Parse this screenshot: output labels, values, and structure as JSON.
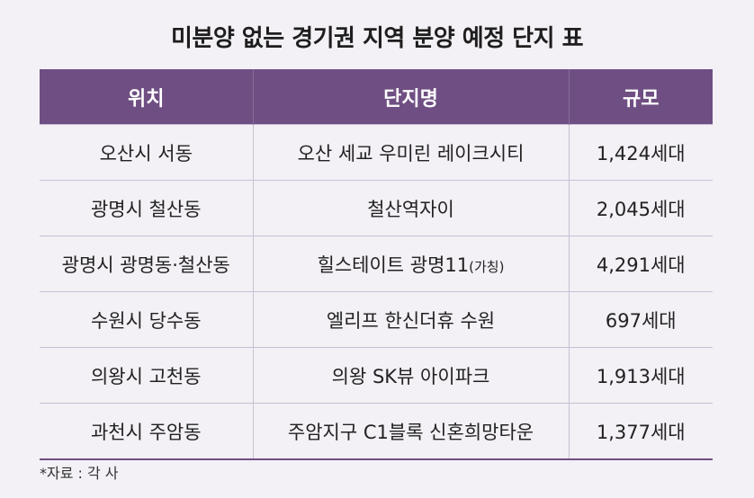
{
  "title": "미분양 없는 경기권 지역 분양 예정 단지 표",
  "table": {
    "headers": [
      "위치",
      "단지명",
      "규모"
    ],
    "rows": [
      {
        "location": "오산시 서동",
        "complex": "오산 세교 우미린 레이크시티",
        "note": "",
        "size": "1,424세대"
      },
      {
        "location": "광명시 철산동",
        "complex": "철산역자이",
        "note": "",
        "size": "2,045세대"
      },
      {
        "location": "광명시 광명동·철산동",
        "complex": "힐스테이트 광명11",
        "note": "(가칭)",
        "size": "4,291세대"
      },
      {
        "location": "수원시 당수동",
        "complex": "엘리프 한신더휴 수원",
        "note": "",
        "size": "697세대"
      },
      {
        "location": "의왕시 고천동",
        "complex": "의왕 SK뷰 아이파크",
        "note": "",
        "size": "1,913세대"
      },
      {
        "location": "과천시 주암동",
        "complex": "주암지구 C1블록 신혼희망타운",
        "note": "",
        "size": "1,377세대"
      }
    ]
  },
  "source": "*자료 : 각 사",
  "colors": {
    "header_bg": "#6f4f83",
    "background": "#f3f0f6"
  }
}
